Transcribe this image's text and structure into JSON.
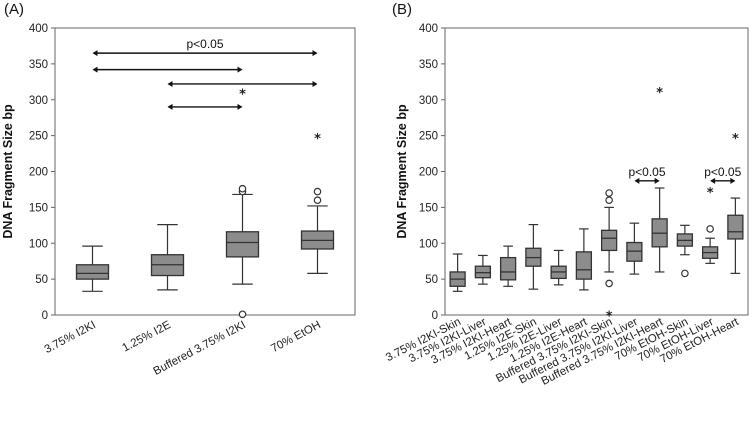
{
  "chart_data": [
    {
      "type": "box",
      "panel": "(A)",
      "ylabel": "DNA Fragment Size bp",
      "ylim": [
        0,
        400
      ],
      "yticks": [
        0,
        50,
        100,
        150,
        200,
        250,
        300,
        350,
        400
      ],
      "categories": [
        "3.75% I2KI",
        "1.25% I2E",
        "Buffered 3.75% I2KI",
        "70% EtOH"
      ],
      "boxes": [
        {
          "min": 33,
          "q1": 50,
          "median": 58,
          "q3": 70,
          "max": 96,
          "outliers": [],
          "extremes": []
        },
        {
          "min": 35,
          "q1": 55,
          "median": 70,
          "q3": 84,
          "max": 126,
          "outliers": [],
          "extremes": []
        },
        {
          "min": 43,
          "q1": 81,
          "median": 101,
          "q3": 116,
          "max": 168,
          "outliers": [
            1,
            172,
            176
          ],
          "extremes": []
        },
        {
          "min": 58,
          "q1": 92,
          "median": 104,
          "q3": 117,
          "max": 152,
          "outliers": [
            160,
            172
          ],
          "extremes": [
            248
          ]
        }
      ],
      "comparisons": [
        {
          "from": 0,
          "to": 3,
          "y": 365,
          "label": "p<0.05"
        },
        {
          "from": 0,
          "to": 2,
          "y": 342,
          "label": ""
        },
        {
          "from": 1,
          "to": 3,
          "y": 322,
          "label": ""
        },
        {
          "from": 1,
          "to": 2,
          "y": 290,
          "label": ""
        }
      ],
      "annotations": [
        {
          "text": "*",
          "category": 2,
          "y": 310
        }
      ]
    },
    {
      "type": "box",
      "panel": "(B)",
      "ylabel": "DNA Fragment Size bp",
      "ylim": [
        0,
        400
      ],
      "yticks": [
        0,
        50,
        100,
        150,
        200,
        250,
        300,
        350,
        400
      ],
      "categories": [
        "3.75% I2KI-Skin",
        "3.75% I2KI-Liver",
        "3.75% I2KI-Heart",
        "1.25% I2E-Skin",
        "1.25% I2E-Liver",
        "1.25% I2E-Heart",
        "Buffered 3.75% I2KI-Skin",
        "Buffered 3.75% I2KI-Liver",
        "Buffered 3.75% I2KI-Heart",
        "70% EtOH-Skin",
        "70% EtOH-Liver",
        "70% EtOH-Heart"
      ],
      "boxes": [
        {
          "min": 33,
          "q1": 40,
          "median": 50,
          "q3": 60,
          "max": 85,
          "outliers": [],
          "extremes": []
        },
        {
          "min": 43,
          "q1": 52,
          "median": 59,
          "q3": 68,
          "max": 83,
          "outliers": [],
          "extremes": []
        },
        {
          "min": 40,
          "q1": 49,
          "median": 60,
          "q3": 80,
          "max": 96,
          "outliers": [],
          "extremes": []
        },
        {
          "min": 36,
          "q1": 68,
          "median": 80,
          "q3": 93,
          "max": 126,
          "outliers": [],
          "extremes": []
        },
        {
          "min": 42,
          "q1": 51,
          "median": 60,
          "q3": 68,
          "max": 90,
          "outliers": [],
          "extremes": []
        },
        {
          "min": 35,
          "q1": 50,
          "median": 63,
          "q3": 88,
          "max": 120,
          "outliers": [],
          "extremes": []
        },
        {
          "min": 60,
          "q1": 90,
          "median": 107,
          "q3": 118,
          "max": 150,
          "outliers": [
            44,
            160,
            170
          ],
          "extremes": [
            1
          ]
        },
        {
          "min": 57,
          "q1": 75,
          "median": 89,
          "q3": 101,
          "max": 128,
          "outliers": [],
          "extremes": []
        },
        {
          "min": 60,
          "q1": 95,
          "median": 114,
          "q3": 134,
          "max": 177,
          "outliers": [],
          "extremes": [
            312
          ]
        },
        {
          "min": 84,
          "q1": 96,
          "median": 104,
          "q3": 113,
          "max": 125,
          "outliers": [
            58
          ],
          "extremes": []
        },
        {
          "min": 72,
          "q1": 79,
          "median": 87,
          "q3": 95,
          "max": 107,
          "outliers": [
            120
          ],
          "extremes": [
            173
          ]
        },
        {
          "min": 58,
          "q1": 106,
          "median": 116,
          "q3": 139,
          "max": 163,
          "outliers": [],
          "extremes": [
            248
          ]
        }
      ],
      "comparisons": [
        {
          "from": 7,
          "to": 8,
          "y": 187,
          "label": "p<0.05"
        },
        {
          "from": 10,
          "to": 11,
          "y": 187,
          "label": "p<0.05"
        }
      ],
      "annotations": []
    }
  ]
}
